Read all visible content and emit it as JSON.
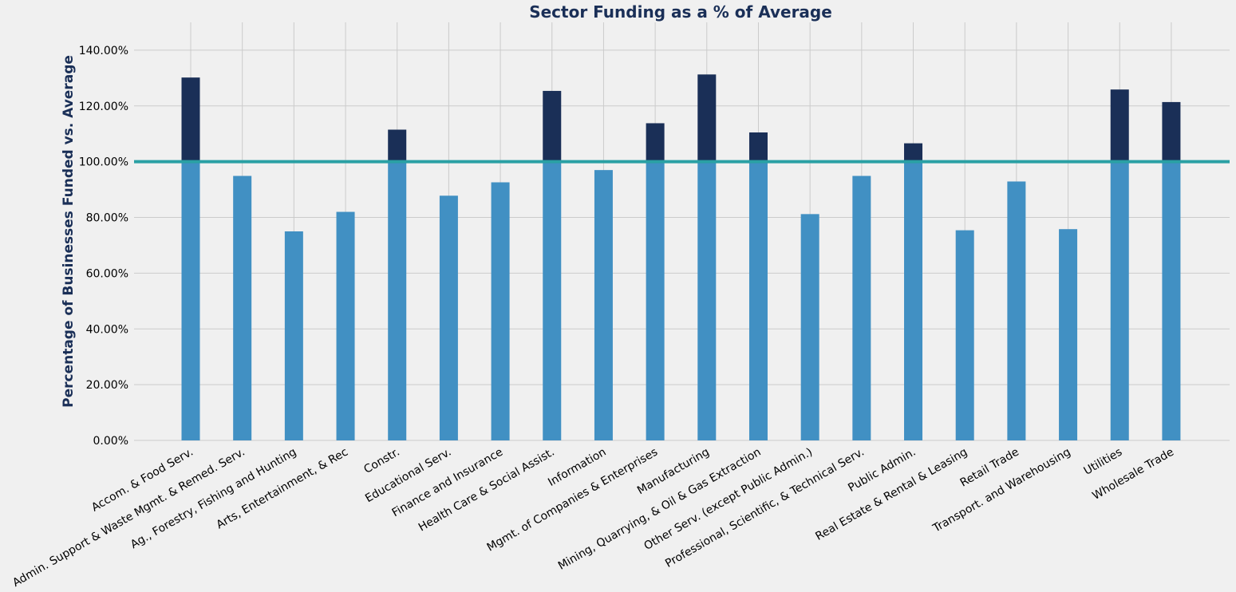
{
  "chart_data": {
    "type": "bar",
    "title": "Sector Funding as a % of Average",
    "xlabel": "",
    "ylabel": "Percentage of Businesses Funded vs. Average",
    "ylim": [
      0,
      150
    ],
    "yticks": [
      "0.00%",
      "20.00%",
      "40.00%",
      "60.00%",
      "80.00%",
      "100.00%",
      "120.00%",
      "140.00%"
    ],
    "reference_line": 100,
    "grid": true,
    "categories": [
      "Accom. & Food Serv.",
      "Admin. Support & Waste Mgmt. & Remed. Serv.",
      "Ag., Forestry, Fishing and Hunting",
      "Arts, Entertainment, & Rec",
      "Constr.",
      "Educational Serv.",
      "Finance and Insurance",
      "Health Care & Social Assist.",
      "Information",
      "Mgmt. of Companies & Enterprises",
      "Manufacturing",
      "Mining, Quarrying, & Oil & Gas Extraction",
      "Other Serv. (except Public Admin.)",
      "Professional, Scientific, & Technical Serv.",
      "Public Admin.",
      "Real Estate & Rental & Leasing",
      "Retail Trade",
      "Transport. and Warehousing",
      "Utilities",
      "Wholesale Trade"
    ],
    "values": [
      130.2,
      94.9,
      75.0,
      82.0,
      111.5,
      87.8,
      92.6,
      125.4,
      97.0,
      113.8,
      131.3,
      110.5,
      81.2,
      94.9,
      106.6,
      75.4,
      92.9,
      75.8,
      125.9,
      121.4
    ],
    "colors": {
      "below": "#4190c3",
      "above": "#1a2f57",
      "reference": "#2aa0a4",
      "title": "#1a2f57",
      "grid": "#cbcbcb",
      "background": "#f0f0f0"
    }
  }
}
